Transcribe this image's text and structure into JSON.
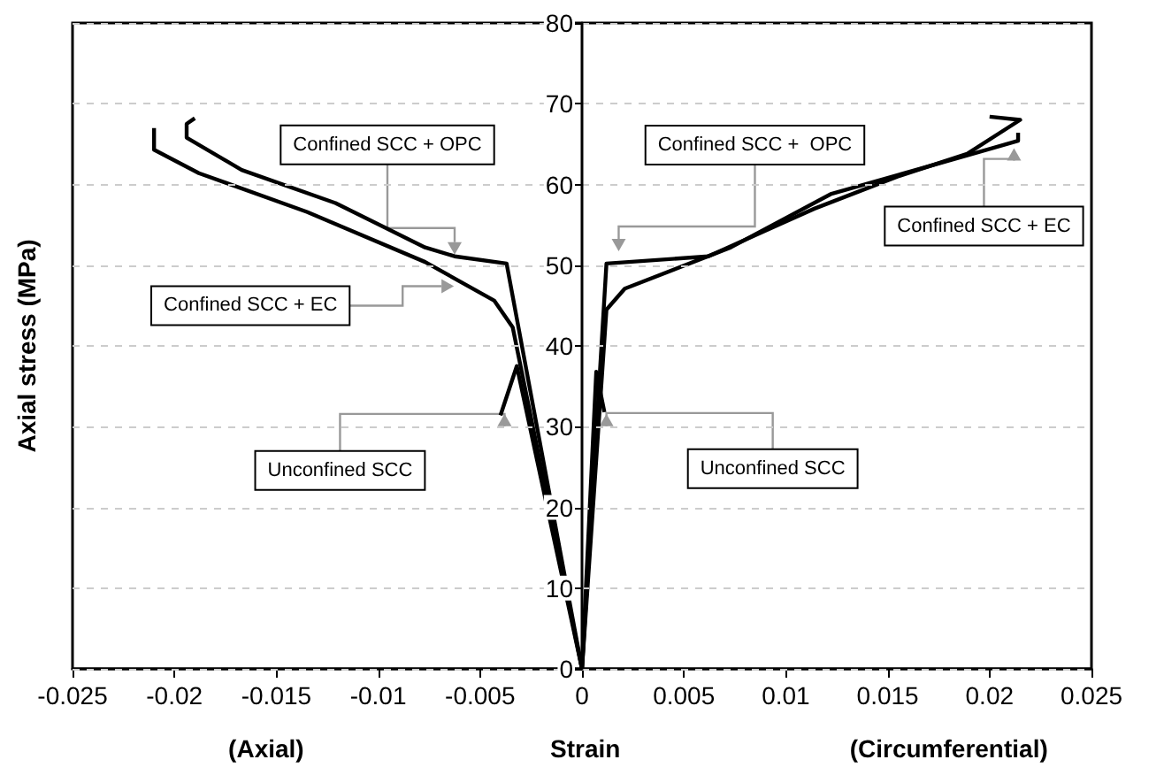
{
  "chart_data": {
    "type": "line",
    "xlabel": "Strain",
    "ylabel": "Axial stress (MPa)",
    "xlim": [
      -0.025,
      0.025
    ],
    "xticks": [
      -0.025,
      -0.02,
      -0.015,
      -0.01,
      -0.005,
      0,
      0.005,
      0.01,
      0.015,
      0.02,
      0.025
    ],
    "ylim": [
      0,
      80
    ],
    "yticks": [
      0,
      10,
      20,
      30,
      40,
      50,
      60,
      70,
      80
    ],
    "grid": "y",
    "line_style": "solid",
    "marker": "none",
    "series": [
      {
        "color": "#000000",
        "x": [
          -0.019,
          -0.0194,
          -0.0194,
          -0.0167,
          -0.0121,
          -0.0077,
          -0.00625,
          -0.0037,
          0,
          0.0012,
          0.0062,
          0.0114,
          0.0155,
          0.0189,
          0.0215,
          0.02
        ],
        "values": [
          68.2,
          67.5,
          65.8,
          61.8,
          57.7,
          52.2,
          51.1,
          50.2,
          0,
          50.2,
          51.1,
          57,
          61,
          63.8,
          68,
          68.4
        ]
      },
      {
        "color": "#000000",
        "x": [
          -0.021,
          -0.021,
          -0.0188,
          -0.0135,
          -0.0077,
          -0.0043,
          -0.0034,
          0,
          0.0012,
          0.0021,
          0.0073,
          0.0122,
          0.0189,
          0.0214,
          0.0214
        ],
        "values": [
          67,
          64.3,
          61.4,
          56.6,
          50.4,
          45.6,
          42.3,
          0,
          44.5,
          47.1,
          52.2,
          58.8,
          63.6,
          65.4,
          66.4
        ]
      },
      {
        "color": "#000000",
        "x": [
          -0.004,
          -0.0032,
          0,
          0.0007,
          0.0011
        ],
        "values": [
          31.4,
          37.5,
          0,
          36.8,
          31.8
        ]
      }
    ],
    "annotations": [
      {
        "text": "Confined SCC + OPC",
        "x": -0.00625,
        "y": 51.1
      },
      {
        "text": "Confined SCC + EC",
        "x": -0.0062,
        "y": 47.4
      },
      {
        "text": "Unconfined SCC",
        "x": -0.0038,
        "y": 31.8
      },
      {
        "text": "Confined SCC +  OPC",
        "x": 0.0018,
        "y": 51.5
      },
      {
        "text": "Confined SCC + EC",
        "x": 0.0212,
        "y": 64.7
      },
      {
        "text": "Unconfined SCC",
        "x": 0.0012,
        "y": 31.8
      },
      "(Axial)",
      "(Circumferential)"
    ]
  }
}
